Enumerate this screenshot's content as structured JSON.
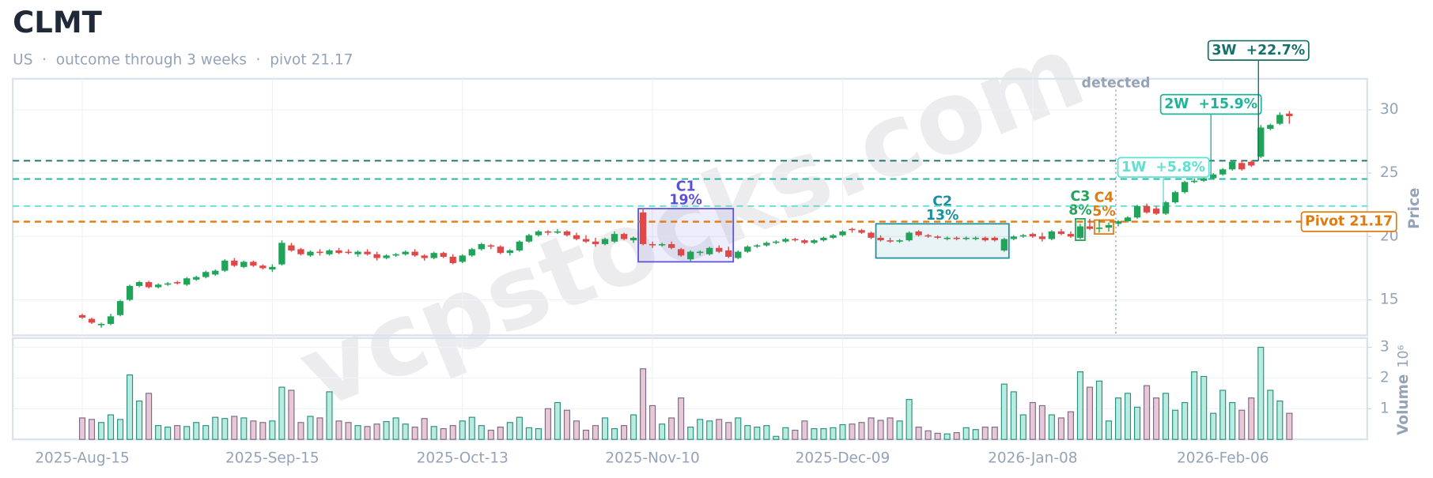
{
  "chart_data": {
    "type": "candlestick",
    "title": "CLMT",
    "subtitle": "US  ·  outcome through 3 weeks  ·  pivot 21.17",
    "watermark": "vcpstocks.com",
    "ylabel": "Price",
    "y2label": "Volume",
    "y2unit": "10⁶",
    "ylim": [
      12.2,
      32.45
    ],
    "yticks": [
      15,
      20,
      25,
      30
    ],
    "y2lim": [
      0,
      3.3
    ],
    "y2ticks": [
      1,
      2,
      3
    ],
    "grid": true,
    "up_color": "#22a35a",
    "down_color": "#e04848",
    "volume_up_color": "#b9ece0",
    "volume_up_edge": "#2a8f7e",
    "volume_down_color": "#e9c8d6",
    "volume_down_edge": "#7a6a8a",
    "x": [
      "2025-08-15",
      "2025-08-18",
      "2025-08-19",
      "2025-08-20",
      "2025-08-21",
      "2025-08-22",
      "2025-08-25",
      "2025-08-26",
      "2025-08-27",
      "2025-08-28",
      "2025-08-29",
      "2025-09-02",
      "2025-09-03",
      "2025-09-04",
      "2025-09-05",
      "2025-09-08",
      "2025-09-09",
      "2025-09-10",
      "2025-09-11",
      "2025-09-12",
      "2025-09-15",
      "2025-09-16",
      "2025-09-17",
      "2025-09-18",
      "2025-09-19",
      "2025-09-22",
      "2025-09-23",
      "2025-09-24",
      "2025-09-25",
      "2025-09-26",
      "2025-09-29",
      "2025-09-30",
      "2025-10-01",
      "2025-10-02",
      "2025-10-03",
      "2025-10-06",
      "2025-10-07",
      "2025-10-08",
      "2025-10-09",
      "2025-10-10",
      "2025-10-13",
      "2025-10-14",
      "2025-10-15",
      "2025-10-16",
      "2025-10-17",
      "2025-10-20",
      "2025-10-21",
      "2025-10-22",
      "2025-10-23",
      "2025-10-24",
      "2025-10-27",
      "2025-10-28",
      "2025-10-29",
      "2025-10-30",
      "2025-10-31",
      "2025-11-03",
      "2025-11-04",
      "2025-11-05",
      "2025-11-06",
      "2025-11-07",
      "2025-11-10",
      "2025-11-11",
      "2025-11-12",
      "2025-11-13",
      "2025-11-14",
      "2025-11-17",
      "2025-11-18",
      "2025-11-19",
      "2025-11-20",
      "2025-11-21",
      "2025-11-24",
      "2025-11-25",
      "2025-11-26",
      "2025-11-28",
      "2025-12-01",
      "2025-12-02",
      "2025-12-03",
      "2025-12-04",
      "2025-12-05",
      "2025-12-08",
      "2025-12-09",
      "2025-12-10",
      "2025-12-11",
      "2025-12-12",
      "2025-12-15",
      "2025-12-16",
      "2025-12-17",
      "2025-12-18",
      "2025-12-19",
      "2025-12-22",
      "2025-12-23",
      "2025-12-24",
      "2025-12-26",
      "2025-12-29",
      "2025-12-30",
      "2025-12-31",
      "2026-01-02",
      "2026-01-05",
      "2026-01-06",
      "2026-01-07",
      "2026-01-08",
      "2026-01-09",
      "2026-01-12",
      "2026-01-13",
      "2026-01-14",
      "2026-01-15",
      "2026-01-16",
      "2026-01-20",
      "2026-01-21",
      "2026-01-22",
      "2026-01-23",
      "2026-01-26",
      "2026-01-27",
      "2026-01-28",
      "2026-01-29",
      "2026-01-30",
      "2026-02-02",
      "2026-02-03",
      "2026-02-04",
      "2026-02-05",
      "2026-02-06",
      "2026-02-09",
      "2026-02-10",
      "2026-02-11",
      "2026-02-12",
      "2026-02-13",
      "2026-02-17",
      "2026-02-18"
    ],
    "xticks": [
      {
        "value": "2025-08-15",
        "label": "2025-Aug-15"
      },
      {
        "value": "2025-09-15",
        "label": "2025-Sep-15"
      },
      {
        "value": "2025-10-13",
        "label": "2025-Oct-13"
      },
      {
        "value": "2025-11-10",
        "label": "2025-Nov-10"
      },
      {
        "value": "2025-12-09",
        "label": "2025-Dec-09"
      },
      {
        "value": "2026-01-08",
        "label": "2026-Jan-08"
      },
      {
        "value": "2026-02-06",
        "label": "2026-Feb-06"
      }
    ],
    "ohlc": [
      [
        13.8,
        13.9,
        13.5,
        13.6
      ],
      [
        13.5,
        13.6,
        13.1,
        13.2
      ],
      [
        13.0,
        13.2,
        12.8,
        13.1
      ],
      [
        13.1,
        13.9,
        13.0,
        13.7
      ],
      [
        13.8,
        15.0,
        13.7,
        14.9
      ],
      [
        15.0,
        16.2,
        14.9,
        16.1
      ],
      [
        16.1,
        16.5,
        16.0,
        16.4
      ],
      [
        16.4,
        16.5,
        15.9,
        16.0
      ],
      [
        16.0,
        16.3,
        15.9,
        16.2
      ],
      [
        16.2,
        16.4,
        16.1,
        16.3
      ],
      [
        16.4,
        16.5,
        16.2,
        16.3
      ],
      [
        16.2,
        16.8,
        16.1,
        16.7
      ],
      [
        16.6,
        16.9,
        16.5,
        16.8
      ],
      [
        16.8,
        17.3,
        16.7,
        17.2
      ],
      [
        17.0,
        17.4,
        16.9,
        17.3
      ],
      [
        17.3,
        18.2,
        17.2,
        18.1
      ],
      [
        18.1,
        18.3,
        17.6,
        17.7
      ],
      [
        17.6,
        18.1,
        17.5,
        18.0
      ],
      [
        18.0,
        18.1,
        17.6,
        17.7
      ],
      [
        17.7,
        17.8,
        17.4,
        17.5
      ],
      [
        17.4,
        17.8,
        17.2,
        17.6
      ],
      [
        17.8,
        19.7,
        17.7,
        19.5
      ],
      [
        19.3,
        19.5,
        18.8,
        18.9
      ],
      [
        19.0,
        19.1,
        18.5,
        18.6
      ],
      [
        18.5,
        18.9,
        18.4,
        18.8
      ],
      [
        18.8,
        19.0,
        18.5,
        18.7
      ],
      [
        18.6,
        19.0,
        18.5,
        18.9
      ],
      [
        18.9,
        19.1,
        18.6,
        18.7
      ],
      [
        18.8,
        19.0,
        18.6,
        18.7
      ],
      [
        18.6,
        18.9,
        18.4,
        18.8
      ],
      [
        18.8,
        19.0,
        18.5,
        18.6
      ],
      [
        18.6,
        18.8,
        18.1,
        18.3
      ],
      [
        18.3,
        18.6,
        18.2,
        18.5
      ],
      [
        18.5,
        18.7,
        18.4,
        18.6
      ],
      [
        18.6,
        18.9,
        18.5,
        18.8
      ],
      [
        18.8,
        19.0,
        18.4,
        18.5
      ],
      [
        18.5,
        18.6,
        18.1,
        18.3
      ],
      [
        18.3,
        18.8,
        18.2,
        18.7
      ],
      [
        18.7,
        18.8,
        18.3,
        18.4
      ],
      [
        18.4,
        18.6,
        17.8,
        17.9
      ],
      [
        18.0,
        18.6,
        17.9,
        18.5
      ],
      [
        18.5,
        19.1,
        18.4,
        19.0
      ],
      [
        19.0,
        19.5,
        18.9,
        19.4
      ],
      [
        19.3,
        19.4,
        19.0,
        19.2
      ],
      [
        19.2,
        19.3,
        18.6,
        18.7
      ],
      [
        18.7,
        19.0,
        18.5,
        18.9
      ],
      [
        18.9,
        19.7,
        18.8,
        19.6
      ],
      [
        19.6,
        20.2,
        19.5,
        20.1
      ],
      [
        20.1,
        20.5,
        20.0,
        20.4
      ],
      [
        20.4,
        20.5,
        20.1,
        20.3
      ],
      [
        20.3,
        20.6,
        20.2,
        20.4
      ],
      [
        20.4,
        20.5,
        20.0,
        20.1
      ],
      [
        20.1,
        20.3,
        19.7,
        19.8
      ],
      [
        19.8,
        20.1,
        19.5,
        19.6
      ],
      [
        19.6,
        19.9,
        19.2,
        19.4
      ],
      [
        19.4,
        19.9,
        19.3,
        19.8
      ],
      [
        19.6,
        20.4,
        19.5,
        20.2
      ],
      [
        20.2,
        20.3,
        19.7,
        19.8
      ],
      [
        19.7,
        20.0,
        19.5,
        19.9
      ],
      [
        21.9,
        22.2,
        19.3,
        19.4
      ],
      [
        19.4,
        19.6,
        19.1,
        19.3
      ],
      [
        19.3,
        19.5,
        19.2,
        19.4
      ],
      [
        19.4,
        19.6,
        19.0,
        19.1
      ],
      [
        19.0,
        19.1,
        18.4,
        18.5
      ],
      [
        18.2,
        18.9,
        18.0,
        18.8
      ],
      [
        18.7,
        18.9,
        18.5,
        18.8
      ],
      [
        18.6,
        19.2,
        18.5,
        19.1
      ],
      [
        19.1,
        19.3,
        18.7,
        18.8
      ],
      [
        18.9,
        19.2,
        18.3,
        18.4
      ],
      [
        18.3,
        18.9,
        18.2,
        18.8
      ],
      [
        18.8,
        19.3,
        18.7,
        19.2
      ],
      [
        19.2,
        19.4,
        19.1,
        19.3
      ],
      [
        19.3,
        19.6,
        19.2,
        19.5
      ],
      [
        19.5,
        19.7,
        19.4,
        19.6
      ],
      [
        19.6,
        19.9,
        19.5,
        19.8
      ],
      [
        19.8,
        19.9,
        19.6,
        19.7
      ],
      [
        19.7,
        19.8,
        19.4,
        19.5
      ],
      [
        19.5,
        19.8,
        19.4,
        19.7
      ],
      [
        19.7,
        20.0,
        19.6,
        19.9
      ],
      [
        19.9,
        20.2,
        19.8,
        20.1
      ],
      [
        20.1,
        20.5,
        20.0,
        20.4
      ],
      [
        20.6,
        20.7,
        20.3,
        20.5
      ],
      [
        20.5,
        20.6,
        20.2,
        20.3
      ],
      [
        20.3,
        20.4,
        19.8,
        19.9
      ],
      [
        19.9,
        20.1,
        19.6,
        19.7
      ],
      [
        19.7,
        19.9,
        19.5,
        19.6
      ],
      [
        19.6,
        19.8,
        19.5,
        19.7
      ],
      [
        19.7,
        20.4,
        19.6,
        20.3
      ],
      [
        20.4,
        20.5,
        20.0,
        20.1
      ],
      [
        20.1,
        20.2,
        19.9,
        20.0
      ],
      [
        20.0,
        20.1,
        19.8,
        19.9
      ],
      [
        19.8,
        20.0,
        19.7,
        19.9
      ],
      [
        19.9,
        20.0,
        19.7,
        19.8
      ],
      [
        19.8,
        20.0,
        19.7,
        19.9
      ],
      [
        19.8,
        20.0,
        19.7,
        19.9
      ],
      [
        19.9,
        20.0,
        19.6,
        19.7
      ],
      [
        19.9,
        20.0,
        19.6,
        19.7
      ],
      [
        18.9,
        19.9,
        18.8,
        19.8
      ],
      [
        19.8,
        20.1,
        19.7,
        20.0
      ],
      [
        20.0,
        20.2,
        19.9,
        20.1
      ],
      [
        20.2,
        20.3,
        19.9,
        20.0
      ],
      [
        20.0,
        20.3,
        19.6,
        19.8
      ],
      [
        19.8,
        20.5,
        19.7,
        20.4
      ],
      [
        20.4,
        20.6,
        20.1,
        20.2
      ],
      [
        20.2,
        20.4,
        19.9,
        20.0
      ],
      [
        19.9,
        21.0,
        19.8,
        20.8
      ],
      [
        20.8,
        21.4,
        20.5,
        20.6
      ],
      [
        20.6,
        21.3,
        20.3,
        20.7
      ],
      [
        20.7,
        21.1,
        20.4,
        20.9
      ],
      [
        21.0,
        21.3,
        20.8,
        21.2
      ],
      [
        21.2,
        21.6,
        21.1,
        21.5
      ],
      [
        21.5,
        22.5,
        21.4,
        22.4
      ],
      [
        22.4,
        22.6,
        21.8,
        21.9
      ],
      [
        22.2,
        22.4,
        21.7,
        21.8
      ],
      [
        21.8,
        22.8,
        21.7,
        22.7
      ],
      [
        22.7,
        23.6,
        22.6,
        23.5
      ],
      [
        23.5,
        24.4,
        23.4,
        24.3
      ],
      [
        24.3,
        24.6,
        24.2,
        24.4
      ],
      [
        24.4,
        24.8,
        24.3,
        24.6
      ],
      [
        24.6,
        25.0,
        24.5,
        24.9
      ],
      [
        24.9,
        25.4,
        24.8,
        25.3
      ],
      [
        25.3,
        26.0,
        25.2,
        25.9
      ],
      [
        25.8,
        26.0,
        25.2,
        25.3
      ],
      [
        25.9,
        26.0,
        25.5,
        25.6
      ],
      [
        26.3,
        28.8,
        26.2,
        28.6
      ],
      [
        28.5,
        28.9,
        28.4,
        28.8
      ],
      [
        28.9,
        29.8,
        28.8,
        29.6
      ],
      [
        29.7,
        29.9,
        28.9,
        29.5
      ]
    ],
    "volume": [
      0.7,
      0.65,
      0.55,
      0.8,
      0.65,
      2.1,
      1.25,
      1.5,
      0.45,
      0.4,
      0.45,
      0.42,
      0.55,
      0.45,
      0.72,
      0.68,
      0.75,
      0.7,
      0.6,
      0.55,
      0.6,
      1.7,
      1.6,
      0.55,
      0.75,
      0.7,
      1.55,
      0.6,
      0.55,
      0.45,
      0.42,
      0.5,
      0.58,
      0.7,
      0.5,
      0.4,
      0.68,
      0.42,
      0.35,
      0.45,
      0.6,
      0.72,
      0.45,
      0.3,
      0.4,
      0.55,
      0.72,
      0.38,
      0.35,
      1.0,
      1.2,
      0.95,
      0.6,
      0.3,
      0.45,
      0.7,
      0.35,
      0.45,
      0.8,
      2.3,
      1.1,
      0.5,
      0.7,
      1.35,
      0.4,
      0.65,
      0.6,
      0.65,
      0.55,
      0.7,
      0.45,
      0.4,
      0.45,
      0.1,
      0.38,
      0.3,
      0.6,
      0.35,
      0.35,
      0.38,
      0.48,
      0.5,
      0.55,
      0.7,
      0.62,
      0.7,
      0.6,
      1.3,
      0.4,
      0.28,
      0.2,
      0.18,
      0.22,
      0.38,
      0.32,
      0.4,
      0.4,
      1.8,
      1.55,
      0.8,
      1.2,
      1.1,
      0.8,
      0.7,
      0.9,
      2.2,
      1.7,
      1.9,
      0.6,
      1.35,
      1.5,
      1.05,
      1.75,
      1.35,
      1.5,
      0.95,
      1.2,
      2.2,
      2.05,
      0.85,
      1.6,
      1.2,
      0.95,
      1.35,
      3.0,
      1.6,
      1.25,
      0.85
    ],
    "pivot": {
      "label": "Pivot 21.17",
      "value": 21.17,
      "color": "#e07b10"
    },
    "detected_label": "detected",
    "contractions": [
      {
        "name": "C1",
        "depth": "19%",
        "start": "2025-11-07",
        "end": "2025-11-20",
        "high": 22.2,
        "low": 18.0,
        "color": "#5b4fd6"
      },
      {
        "name": "C2",
        "depth": "13%",
        "start": "2025-12-15",
        "end": "2026-01-05",
        "high": 21.0,
        "low": 18.3,
        "color": "#1a8fa0"
      },
      {
        "name": "C3",
        "depth": "8%",
        "start": "2026-01-15",
        "end": "2026-01-15",
        "high": 21.4,
        "low": 19.7,
        "color": "#22a35a"
      },
      {
        "name": "C4",
        "depth": "5%",
        "start": "2026-01-20",
        "end": "2026-01-21",
        "high": 21.3,
        "low": 20.2,
        "color": "#e07b10"
      }
    ],
    "outcomes": [
      {
        "label": "1W  +5.8%",
        "level": 22.4,
        "color": "#5fe0d2"
      },
      {
        "label": "2W  +15.9%",
        "level": 24.54,
        "color": "#1fb39c"
      },
      {
        "label": "3W  +22.7%",
        "level": 25.98,
        "color": "#16716b"
      }
    ]
  }
}
